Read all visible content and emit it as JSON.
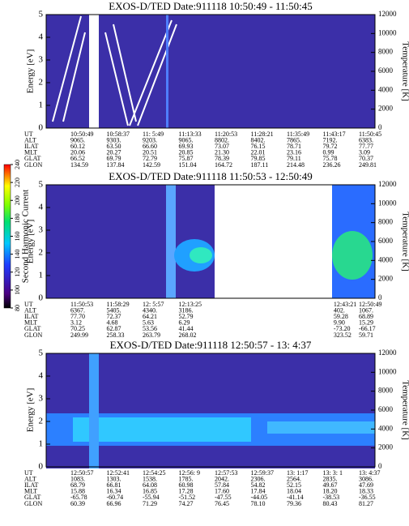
{
  "chart_data": [
    {
      "type": "spectrogram",
      "title": "EXOS-D/TED   Date:911118  10:50:49 - 11:50:45",
      "ylabel": "Energy [eV]",
      "ylim": [
        0,
        5
      ],
      "yticks": [
        0,
        1,
        2,
        3,
        4,
        5
      ],
      "y2label": "Temperature [K]",
      "y2lim": [
        0,
        12000
      ],
      "y2ticks": [
        0,
        2000,
        4000,
        6000,
        8000,
        10000,
        12000
      ],
      "ephemeris": [
        {
          "label": "UT",
          "values": [
            "10:50:49",
            "10:58:37",
            "11: 5:49",
            "11:13:33",
            "11:20:53",
            "11:28:21",
            "11:35:49",
            "11:43:17",
            "11:50:45"
          ]
        },
        {
          "label": "ALT",
          "values": [
            "9065.",
            "9303.",
            "9203.",
            "9065.",
            "8802.",
            "8402.",
            "7865.",
            "7192.",
            "6383."
          ]
        },
        {
          "label": "ILAT",
          "values": [
            "60.12",
            "63.50",
            "66.60",
            "69.93",
            "73.07",
            "76.15",
            "78.71",
            "79.72",
            "77.77"
          ]
        },
        {
          "label": "MLT",
          "values": [
            "20.06",
            "20.27",
            "20.51",
            "20.85",
            "21.30",
            "22.01",
            "23.16",
            "0.99",
            "3.09"
          ]
        },
        {
          "label": "GLAT",
          "values": [
            "66.52",
            "69.79",
            "72.79",
            "75.87",
            "78.39",
            "79.85",
            "79.11",
            "75.78",
            "70.37"
          ]
        },
        {
          "label": "GLON",
          "values": [
            "134.59",
            "137.84",
            "142.59",
            "151.04",
            "164.72",
            "187.11",
            "214.48",
            "236.26",
            "249.81"
          ]
        }
      ]
    },
    {
      "type": "spectrogram",
      "title": "EXOS-D/TED   Date:911118  11:50:53 - 12:50:49",
      "ylabel": "Energy [eV]",
      "ylim": [
        0,
        5
      ],
      "yticks": [
        0,
        1,
        2,
        3,
        4,
        5
      ],
      "y2label": "Temperature [K]",
      "y2lim": [
        0,
        12000
      ],
      "y2ticks": [
        0,
        2000,
        4000,
        6000,
        8000,
        10000,
        12000
      ],
      "ephemeris": [
        {
          "label": "UT",
          "values": [
            "11:50:53",
            "11:58:29",
            "12: 5:57",
            "12:13:25",
            "12:43:21",
            "12:50:49"
          ]
        },
        {
          "label": "ALT",
          "values": [
            "6367.",
            "5405.",
            "4340.",
            "3186.",
            "402.",
            "1067."
          ]
        },
        {
          "label": "ILAT",
          "values": [
            "77.70",
            "72.37",
            "64.21",
            "52.79",
            "59.28",
            "68.89"
          ]
        },
        {
          "label": "MLT",
          "values": [
            "3.12",
            "4.68",
            "5.63",
            "6.29",
            "9.90",
            "15.29"
          ]
        },
        {
          "label": "GLAT",
          "values": [
            "70.25",
            "62.87",
            "53.56",
            "41.44",
            "-73.20",
            "-66.17"
          ]
        },
        {
          "label": "GLON",
          "values": [
            "249.99",
            "258.33",
            "263.79",
            "268.02",
            "323.52",
            "59.71"
          ]
        }
      ]
    },
    {
      "type": "spectrogram",
      "title": "EXOS-D/TED   Date:911118  12:50:57 - 13: 4:37",
      "ylabel": "Energy [eV]",
      "ylim": [
        0,
        5
      ],
      "yticks": [
        0,
        1,
        2,
        3,
        4,
        5
      ],
      "y2label": "Temperature [K]",
      "y2lim": [
        0,
        12000
      ],
      "y2ticks": [
        0,
        2000,
        4000,
        6000,
        8000,
        10000,
        12000
      ],
      "ephemeris": [
        {
          "label": "UT",
          "values": [
            "12:50:57",
            "12:52:41",
            "12:54:25",
            "12:56: 9",
            "12:57:53",
            "12:59:37",
            "13: 1:17",
            "13: 3: 1",
            "13: 4:37"
          ]
        },
        {
          "label": "ALT",
          "values": [
            "1083.",
            "1303.",
            "1538.",
            "1785.",
            "2042.",
            "2306.",
            "2564.",
            "2835.",
            "3086."
          ]
        },
        {
          "label": "ILAT",
          "values": [
            "68.79",
            "66.81",
            "64.08",
            "60.98",
            "57.84",
            "54.82",
            "52.15",
            "49.67",
            "47.69"
          ]
        },
        {
          "label": "MLT",
          "values": [
            "15.88",
            "16.34",
            "16.85",
            "17.28",
            "17.60",
            "17.84",
            "18.04",
            "18.20",
            "18.33"
          ]
        },
        {
          "label": "GLAT",
          "values": [
            "-65.78",
            "-60.74",
            "-55.94",
            "-51.52",
            "-47.55",
            "-44.05",
            "-41.14",
            "-38.53",
            "-36.55"
          ]
        },
        {
          "label": "GLON",
          "values": [
            "60.39",
            "66.96",
            "71.29",
            "74.27",
            "76.45",
            "78.10",
            "79.36",
            "80.43",
            "81.27"
          ]
        }
      ]
    },
    {
      "type": "colorbar",
      "label": "Second Harmonic Current",
      "ylim": [
        80,
        240
      ],
      "yticks": [
        80,
        100,
        120,
        140,
        160,
        180,
        200,
        220,
        240
      ]
    }
  ]
}
